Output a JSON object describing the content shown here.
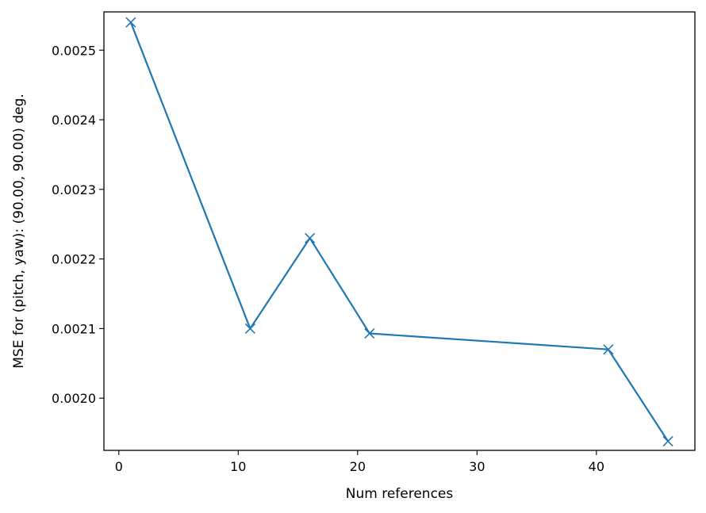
{
  "chart_data": {
    "type": "line",
    "title": "",
    "xlabel": "Num references",
    "ylabel": "MSE for (pitch, yaw): (90.00, 90.00) deg.",
    "xlim": [
      -1.25,
      48.25
    ],
    "ylim": [
      0.001925,
      0.002555
    ],
    "xticks": [
      0,
      10,
      20,
      30,
      40
    ],
    "yticks": [
      0.002,
      0.0021,
      0.0022,
      0.0023,
      0.0024,
      0.0025
    ],
    "ytick_labels": [
      "0.0020",
      "0.0021",
      "0.0022",
      "0.0023",
      "0.0024",
      "0.0025"
    ],
    "xtick_labels": [
      "0",
      "10",
      "20",
      "30",
      "40"
    ],
    "grid": false,
    "marker": "x",
    "color": "#1f77b4",
    "series": [
      {
        "x": [
          1,
          11,
          16,
          21,
          41,
          46
        ],
        "y": [
          0.00254,
          0.0021,
          0.00223,
          0.002093,
          0.00207,
          0.001938
        ]
      }
    ]
  }
}
